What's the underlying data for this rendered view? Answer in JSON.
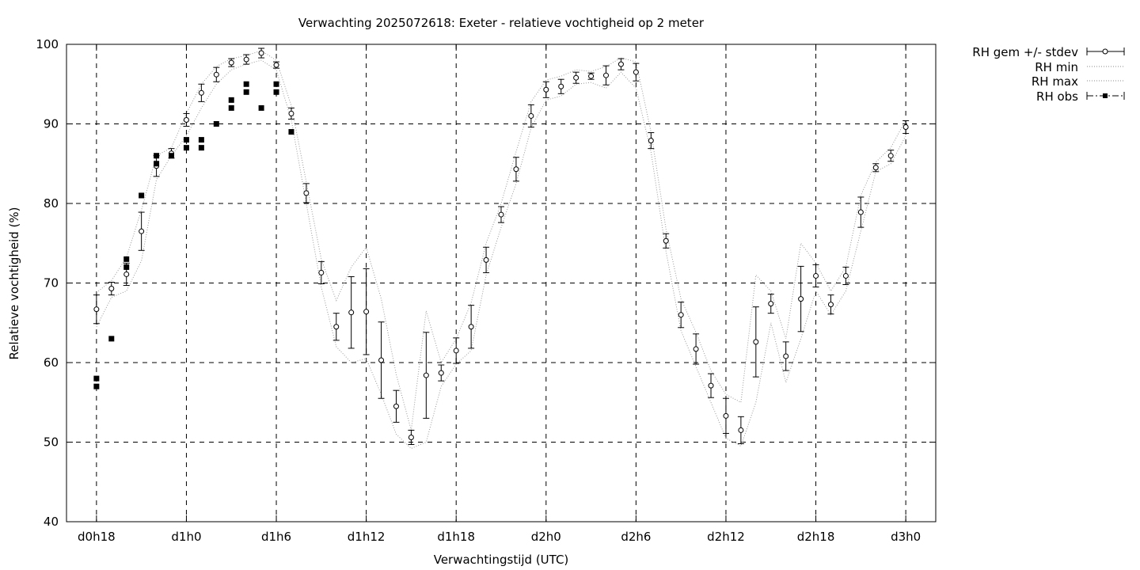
{
  "chart_data": {
    "type": "line",
    "title": "Verwachting 2025072618: Exeter - relatieve vochtigheid op 2 meter",
    "xlabel": "Verwachtingstijd (UTC)",
    "ylabel": "Relatieve vochtigheid (%)",
    "ylim": [
      40,
      100
    ],
    "yticks": [
      40,
      50,
      60,
      70,
      80,
      90,
      100
    ],
    "xlim": [
      16,
      74
    ],
    "xticks": [
      {
        "h": 18,
        "label": "d0h18"
      },
      {
        "h": 24,
        "label": "d1h0"
      },
      {
        "h": 30,
        "label": "d1h6"
      },
      {
        "h": 36,
        "label": "d1h12"
      },
      {
        "h": 42,
        "label": "d1h18"
      },
      {
        "h": 48,
        "label": "d2h0"
      },
      {
        "h": 54,
        "label": "d2h6"
      },
      {
        "h": 60,
        "label": "d2h12"
      },
      {
        "h": 66,
        "label": "d2h18"
      },
      {
        "h": 72,
        "label": "d3h0"
      }
    ],
    "grid": true,
    "legend_position": "outside-top-right",
    "legend": {
      "mean": "RH gem +/- stdev",
      "min": "RH min",
      "max": "RH max",
      "obs": "RH obs"
    },
    "x": [
      18,
      19,
      20,
      21,
      22,
      23,
      24,
      25,
      26,
      27,
      28,
      29,
      30,
      31,
      32,
      33,
      34,
      35,
      36,
      37,
      38,
      39,
      40,
      41,
      42,
      43,
      44,
      45,
      46,
      47,
      48,
      49,
      50,
      51,
      52,
      53,
      54,
      55,
      56,
      57,
      58,
      59,
      60,
      61,
      62,
      63,
      64,
      65,
      66,
      67,
      68,
      69,
      70,
      71,
      72
    ],
    "mean": [
      66.7,
      69.3,
      71.1,
      76.5,
      84.7,
      86.3,
      90.5,
      93.9,
      96.2,
      97.7,
      98.1,
      98.9,
      97.4,
      91.3,
      81.3,
      71.3,
      64.5,
      66.3,
      66.4,
      60.3,
      54.5,
      50.6,
      58.4,
      58.7,
      61.5,
      64.5,
      72.9,
      78.6,
      84.3,
      91.0,
      94.3,
      94.7,
      95.8,
      96.0,
      96.1,
      97.5,
      96.5,
      87.9,
      75.3,
      66.0,
      61.7,
      57.1,
      53.3,
      51.5,
      62.6,
      67.4,
      60.8,
      68.0,
      70.9,
      67.3,
      70.9,
      78.9,
      84.5,
      86.0,
      89.6
    ],
    "stdev": [
      1.8,
      0.8,
      1.4,
      2.4,
      1.3,
      0.6,
      0.8,
      1.1,
      0.9,
      0.5,
      0.6,
      0.6,
      0.4,
      0.7,
      1.2,
      1.4,
      1.7,
      4.5,
      5.4,
      4.8,
      2.0,
      0.9,
      5.4,
      1.0,
      1.6,
      2.7,
      1.6,
      1.0,
      1.5,
      1.4,
      1.0,
      0.9,
      0.7,
      0.4,
      1.2,
      0.7,
      1.1,
      1.0,
      0.9,
      1.6,
      1.9,
      1.5,
      2.2,
      1.7,
      4.4,
      1.2,
      1.8,
      4.1,
      1.4,
      1.2,
      1.1,
      1.9,
      0.5,
      0.7,
      0.8
    ],
    "min": [
      64.5,
      68.2,
      69.0,
      72.8,
      83.0,
      86.0,
      88.5,
      92.0,
      95.0,
      96.8,
      97.5,
      98.0,
      96.8,
      90.5,
      80.0,
      69.5,
      62.0,
      60.0,
      60.5,
      56.0,
      51.0,
      49.2,
      50.0,
      57.0,
      59.8,
      61.5,
      71.0,
      77.0,
      82.5,
      89.5,
      93.0,
      93.5,
      95.0,
      95.2,
      94.5,
      96.5,
      94.5,
      86.5,
      74.0,
      64.0,
      59.5,
      55.0,
      50.5,
      49.5,
      55.0,
      65.0,
      57.5,
      63.0,
      69.0,
      66.0,
      69.0,
      76.5,
      84.0,
      85.0,
      88.5
    ],
    "max": [
      68.8,
      70.3,
      73.2,
      79.2,
      86.0,
      87.0,
      91.3,
      95.0,
      97.2,
      98.2,
      98.6,
      99.2,
      98.0,
      92.3,
      82.7,
      73.0,
      67.8,
      72.0,
      74.5,
      68.0,
      58.5,
      51.5,
      66.5,
      60.0,
      63.0,
      67.5,
      75.0,
      80.0,
      86.5,
      92.8,
      95.5,
      96.0,
      96.8,
      96.6,
      97.2,
      98.3,
      97.8,
      89.0,
      76.8,
      68.0,
      63.8,
      59.0,
      56.0,
      55.0,
      71.0,
      69.0,
      63.0,
      75.0,
      72.5,
      69.0,
      72.0,
      81.0,
      85.2,
      87.0,
      90.5
    ],
    "obs": [
      {
        "x": 18,
        "y": 58
      },
      {
        "x": 18,
        "y": 57
      },
      {
        "x": 19,
        "y": 63
      },
      {
        "x": 20,
        "y": 73
      },
      {
        "x": 20,
        "y": 72
      },
      {
        "x": 21,
        "y": 81
      },
      {
        "x": 22,
        "y": 86
      },
      {
        "x": 22,
        "y": 85
      },
      {
        "x": 23,
        "y": 86
      },
      {
        "x": 24,
        "y": 88
      },
      {
        "x": 24,
        "y": 87
      },
      {
        "x": 25,
        "y": 88
      },
      {
        "x": 25,
        "y": 87
      },
      {
        "x": 26,
        "y": 90
      },
      {
        "x": 27,
        "y": 93
      },
      {
        "x": 27,
        "y": 92
      },
      {
        "x": 28,
        "y": 95
      },
      {
        "x": 28,
        "y": 94
      },
      {
        "x": 29,
        "y": 92
      },
      {
        "x": 30,
        "y": 95
      },
      {
        "x": 30,
        "y": 94
      },
      {
        "x": 31,
        "y": 89
      }
    ]
  }
}
